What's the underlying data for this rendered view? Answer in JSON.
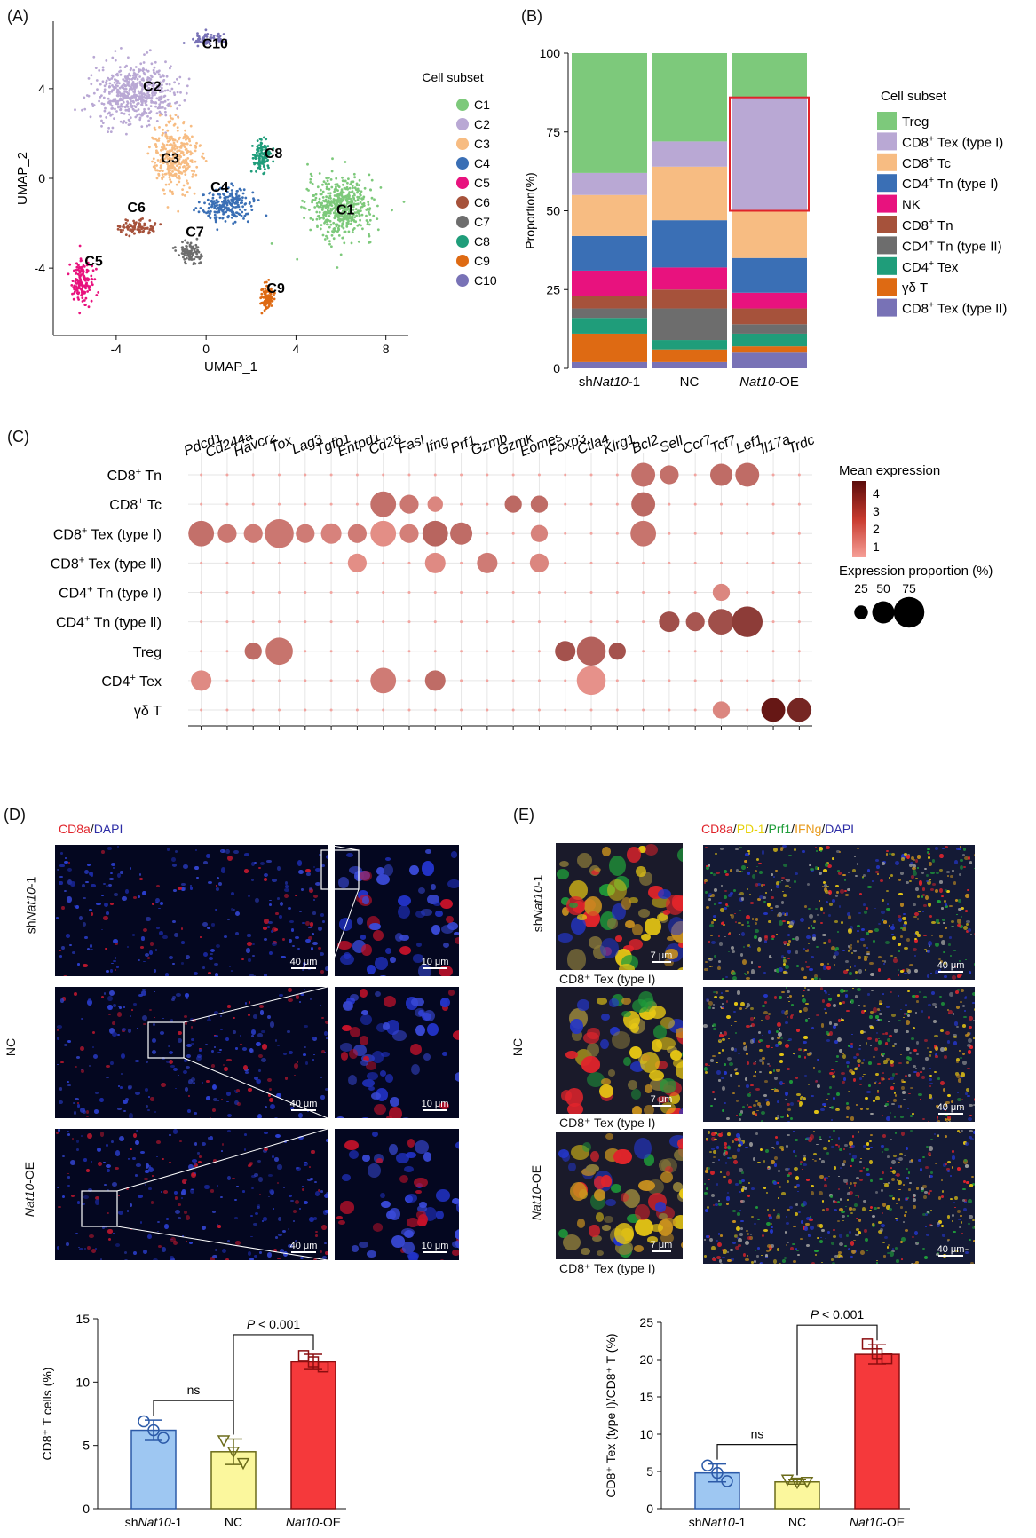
{
  "panels": {
    "A": "(A)",
    "B": "(B)",
    "C": "(C)",
    "D": "(D)",
    "E": "(E)"
  },
  "chart_data": [
    {
      "id": "A",
      "type": "scatter",
      "xlabel": "UMAP_1",
      "ylabel": "UMAP_2",
      "xlim": [
        -6.8,
        9
      ],
      "ylim": [
        -7,
        7
      ],
      "xticks": [
        "-4",
        "0",
        "4",
        "8"
      ],
      "yticks": [
        "-4",
        "0",
        "4"
      ],
      "legend_title": "Cell subset",
      "clusters": [
        {
          "name": "C1",
          "color": "#7dc97b",
          "center": [
            6.0,
            -1.3
          ],
          "label_pos": [
            6.2,
            -1.6
          ]
        },
        {
          "name": "C2",
          "color": "#b9a8d4",
          "center": [
            -3.2,
            3.8
          ],
          "label_pos": [
            -2.4,
            3.9
          ]
        },
        {
          "name": "C3",
          "color": "#f7bc82",
          "center": [
            -1.4,
            1.0
          ],
          "label_pos": [
            -1.6,
            0.7
          ]
        },
        {
          "name": "C4",
          "color": "#3a6fb5",
          "center": [
            1.0,
            -1.2
          ],
          "label_pos": [
            0.6,
            -0.6
          ]
        },
        {
          "name": "C5",
          "color": "#e8127e",
          "center": [
            -5.5,
            -4.6
          ],
          "label_pos": [
            -5.0,
            -3.9
          ]
        },
        {
          "name": "C6",
          "color": "#a6523b",
          "center": [
            -3.0,
            -2.2
          ],
          "label_pos": [
            -3.1,
            -1.5
          ]
        },
        {
          "name": "C7",
          "color": "#6d6d6d",
          "center": [
            -0.7,
            -3.3
          ],
          "label_pos": [
            -0.5,
            -2.6
          ]
        },
        {
          "name": "C8",
          "color": "#1f9d7a",
          "center": [
            2.5,
            1.0
          ],
          "label_pos": [
            3.0,
            0.9
          ]
        },
        {
          "name": "C9",
          "color": "#de6a13",
          "center": [
            2.7,
            -5.3
          ],
          "label_pos": [
            3.1,
            -5.1
          ]
        },
        {
          "name": "C10",
          "color": "#7872b6",
          "center": [
            0.0,
            6.2
          ],
          "label_pos": [
            0.4,
            5.8
          ]
        }
      ]
    },
    {
      "id": "B",
      "type": "bar",
      "stacked": true,
      "ylabel": "Proportion(%)",
      "ylim": [
        0,
        100
      ],
      "yticks": [
        "0",
        "25",
        "50",
        "75",
        "100"
      ],
      "categories": [
        {
          "pre": "sh",
          "italic": "Nat10",
          "post": "-1"
        },
        {
          "pre": "NC",
          "italic": "",
          "post": ""
        },
        {
          "pre": "",
          "italic": "Nat10",
          "post": "-OE"
        }
      ],
      "legend_title": "Cell subset",
      "series": [
        {
          "name": "Treg",
          "sup": "",
          "color": "#7dc97b",
          "values": [
            38,
            28,
            14
          ]
        },
        {
          "name": "CD8",
          "sup": "+",
          "tail": " Tex (type I)",
          "color": "#b9a8d4",
          "values": [
            7,
            8,
            36
          ]
        },
        {
          "name": "CD8",
          "sup": "+",
          "tail": " Tc",
          "color": "#f7bc82",
          "values": [
            13,
            17,
            15
          ]
        },
        {
          "name": "CD4",
          "sup": "+",
          "tail": " Tn (type I)",
          "color": "#3a6fb5",
          "values": [
            11,
            15,
            11
          ]
        },
        {
          "name": "NK",
          "sup": "",
          "color": "#e8127e",
          "values": [
            8,
            7,
            5
          ]
        },
        {
          "name": "CD8",
          "sup": "+",
          "tail": " Tn",
          "color": "#a6523b",
          "values": [
            4,
            6,
            5
          ]
        },
        {
          "name": "CD4",
          "sup": "+",
          "tail": " Tn (type II)",
          "color": "#6d6d6d",
          "values": [
            3,
            10,
            3
          ]
        },
        {
          "name": "CD4",
          "sup": "+",
          "tail": " Tex",
          "color": "#1f9d7a",
          "values": [
            5,
            3,
            4
          ]
        },
        {
          "name": "γδ T",
          "sup": "",
          "color": "#de6a13",
          "values": [
            9,
            4,
            2
          ]
        },
        {
          "name": "CD8",
          "sup": "+",
          "tail": " Tex (type II)",
          "color": "#7872b6",
          "values": [
            2,
            2,
            5
          ]
        }
      ],
      "highlight": {
        "category_index": 2,
        "from": 50,
        "to": 86,
        "color": "#e0242b"
      }
    },
    {
      "id": "C",
      "type": "scatter",
      "subtype": "dotplot",
      "genes": [
        "Pdcd1",
        "Cd244a",
        "Havcr2",
        "Tox",
        "Lag3",
        "Tgfb1",
        "Entpd1",
        "Cd28",
        "Fasl",
        "Ifng",
        "Prf1",
        "Gzmb",
        "Gzmk",
        "Eomes",
        "Foxp3",
        "Ctla4",
        "Klrg1",
        "Bcl2",
        "Sell",
        "Ccr7",
        "Tcf7",
        "Lef1",
        "Il17a",
        "Trdc"
      ],
      "rows": [
        {
          "base": "CD8",
          "sup": "+",
          "tail": " Tn"
        },
        {
          "base": "CD8",
          "sup": "+",
          "tail": " Tc"
        },
        {
          "base": "CD8",
          "sup": "+",
          "tail": " Tex (type Ⅰ)"
        },
        {
          "base": "CD8",
          "sup": "+",
          "tail": " Tex (type Ⅱ)"
        },
        {
          "base": "CD4",
          "sup": "+",
          "tail": " Tn (type Ⅰ)"
        },
        {
          "base": "CD4",
          "sup": "+",
          "tail": " Tn (type Ⅱ)"
        },
        {
          "base": "Treg",
          "sup": "",
          "tail": ""
        },
        {
          "base": "CD4",
          "sup": "+",
          "tail": " Tex"
        },
        {
          "base": "γδ T",
          "sup": "",
          "tail": ""
        }
      ],
      "points": [
        {
          "row": 0,
          "gene": "Bcl2",
          "expr": 1.8,
          "pct": 55
        },
        {
          "row": 0,
          "gene": "Sell",
          "expr": 1.8,
          "pct": 40
        },
        {
          "row": 0,
          "gene": "Tcf7",
          "expr": 1.9,
          "pct": 50
        },
        {
          "row": 0,
          "gene": "Lef1",
          "expr": 1.9,
          "pct": 55
        },
        {
          "row": 1,
          "gene": "Cd28",
          "expr": 1.8,
          "pct": 60
        },
        {
          "row": 1,
          "gene": "Fasl",
          "expr": 1.6,
          "pct": 40
        },
        {
          "row": 1,
          "gene": "Ifng",
          "expr": 1.2,
          "pct": 30
        },
        {
          "row": 1,
          "gene": "Gzmk",
          "expr": 2.0,
          "pct": 35
        },
        {
          "row": 1,
          "gene": "Eomes",
          "expr": 1.9,
          "pct": 35
        },
        {
          "row": 1,
          "gene": "Bcl2",
          "expr": 2.0,
          "pct": 55
        },
        {
          "row": 2,
          "gene": "Pdcd1",
          "expr": 1.8,
          "pct": 60
        },
        {
          "row": 2,
          "gene": "Cd244a",
          "expr": 1.6,
          "pct": 40
        },
        {
          "row": 2,
          "gene": "Havcr2",
          "expr": 1.5,
          "pct": 40
        },
        {
          "row": 2,
          "gene": "Tox",
          "expr": 1.6,
          "pct": 70
        },
        {
          "row": 2,
          "gene": "Lag3",
          "expr": 1.5,
          "pct": 40
        },
        {
          "row": 2,
          "gene": "Tgfb1",
          "expr": 1.3,
          "pct": 45
        },
        {
          "row": 2,
          "gene": "Entpd1",
          "expr": 1.5,
          "pct": 40
        },
        {
          "row": 2,
          "gene": "Cd28",
          "expr": 1.0,
          "pct": 60
        },
        {
          "row": 2,
          "gene": "Fasl",
          "expr": 1.4,
          "pct": 40
        },
        {
          "row": 2,
          "gene": "Ifng",
          "expr": 2.1,
          "pct": 60
        },
        {
          "row": 2,
          "gene": "Prf1",
          "expr": 1.9,
          "pct": 50
        },
        {
          "row": 2,
          "gene": "Eomes",
          "expr": 1.3,
          "pct": 35
        },
        {
          "row": 2,
          "gene": "Bcl2",
          "expr": 1.7,
          "pct": 60
        },
        {
          "row": 3,
          "gene": "Entpd1",
          "expr": 1.0,
          "pct": 40
        },
        {
          "row": 3,
          "gene": "Ifng",
          "expr": 1.1,
          "pct": 45
        },
        {
          "row": 3,
          "gene": "Gzmb",
          "expr": 1.5,
          "pct": 45
        },
        {
          "row": 3,
          "gene": "Eomes",
          "expr": 1.2,
          "pct": 40
        },
        {
          "row": 4,
          "gene": "Tcf7",
          "expr": 1.2,
          "pct": 35
        },
        {
          "row": 5,
          "gene": "Sell",
          "expr": 2.7,
          "pct": 45
        },
        {
          "row": 5,
          "gene": "Ccr7",
          "expr": 2.5,
          "pct": 40
        },
        {
          "row": 5,
          "gene": "Tcf7",
          "expr": 2.7,
          "pct": 60
        },
        {
          "row": 5,
          "gene": "Lef1",
          "expr": 3.2,
          "pct": 75
        },
        {
          "row": 6,
          "gene": "Havcr2",
          "expr": 1.9,
          "pct": 35
        },
        {
          "row": 6,
          "gene": "Tox",
          "expr": 1.7,
          "pct": 65
        },
        {
          "row": 6,
          "gene": "Foxp3",
          "expr": 2.6,
          "pct": 45
        },
        {
          "row": 6,
          "gene": "Ctla4",
          "expr": 2.2,
          "pct": 70
        },
        {
          "row": 6,
          "gene": "Klrg1",
          "expr": 2.6,
          "pct": 35
        },
        {
          "row": 7,
          "gene": "Pdcd1",
          "expr": 1.1,
          "pct": 45
        },
        {
          "row": 7,
          "gene": "Cd28",
          "expr": 1.5,
          "pct": 60
        },
        {
          "row": 7,
          "gene": "Ifng",
          "expr": 1.9,
          "pct": 45
        },
        {
          "row": 7,
          "gene": "Ctla4",
          "expr": 0.9,
          "pct": 70
        },
        {
          "row": 8,
          "gene": "Tcf7",
          "expr": 1.2,
          "pct": 35
        },
        {
          "row": 8,
          "gene": "Il17a",
          "expr": 4.2,
          "pct": 55
        },
        {
          "row": 8,
          "gene": "Trdc",
          "expr": 3.8,
          "pct": 55
        }
      ],
      "color_legend_title": "Mean expression",
      "color_ticks": [
        "1",
        "2",
        "3",
        "4"
      ],
      "size_legend_title": "Expression proportion (%)",
      "size_ticks": [
        "25",
        "50",
        "75"
      ]
    },
    {
      "id": "D-bar",
      "type": "bar",
      "ylabel": "CD8⁺ T cells (%)",
      "ylim": [
        0,
        15
      ],
      "yticks": [
        "0",
        "5",
        "10",
        "15"
      ],
      "categories": [
        "shNat10-1",
        "NC",
        "Nat10-OE"
      ],
      "values": [
        6.2,
        4.5,
        11.6
      ],
      "errors": [
        0.8,
        1.0,
        0.6
      ],
      "points": [
        [
          6.9,
          6.2,
          5.6
        ],
        [
          5.4,
          4.5,
          3.6
        ],
        [
          12.1,
          11.6,
          11.2
        ]
      ],
      "colors": [
        "#9ec7f2",
        "#fbf79d",
        "#f5393b"
      ],
      "stroke_colors": [
        "#2c5aa8",
        "#6b6b1a",
        "#8b0e10"
      ],
      "annotations": [
        {
          "text": "ns",
          "from": 0,
          "to": 1
        },
        {
          "text_pre": "P",
          "text_post": " < 0.001",
          "from": 1,
          "to": 2
        }
      ]
    },
    {
      "id": "E-bar",
      "type": "bar",
      "ylabel": "CD8⁺ Tex (type I)/CD8⁺ T (%)",
      "ylim": [
        0,
        25
      ],
      "yticks": [
        "0",
        "5",
        "10",
        "15",
        "20",
        "25"
      ],
      "categories": [
        "shNat10-1",
        "NC",
        "Nat10-OE"
      ],
      "values": [
        4.8,
        3.6,
        20.7
      ],
      "errors": [
        1.2,
        0.3,
        1.3
      ],
      "points": [
        [
          5.8,
          4.8,
          3.7
        ],
        [
          3.9,
          3.5,
          3.6
        ],
        [
          22.1,
          20.8,
          20.1
        ]
      ],
      "colors": [
        "#9ec7f2",
        "#fbf79d",
        "#f5393b"
      ],
      "stroke_colors": [
        "#2c5aa8",
        "#6b6b1a",
        "#8b0e10"
      ],
      "annotations": [
        {
          "text": "ns",
          "from": 0,
          "to": 1
        },
        {
          "text_pre": "P",
          "text_post": " < 0.001",
          "from": 1,
          "to": 2
        }
      ]
    }
  ],
  "panel_d": {
    "stain": {
      "cd8a": "CD8a",
      "sep": "/",
      "dapi": "DAPI",
      "cd8a_color": "#e0242b",
      "dapi_color": "#2d2da6"
    },
    "rows": [
      {
        "pre": "sh",
        "italic": "Nat10",
        "post": "-1"
      },
      {
        "pre": "NC",
        "italic": "",
        "post": ""
      },
      {
        "pre": "",
        "italic": "Nat10",
        "post": "-OE"
      }
    ],
    "scale_large": "40 μm",
    "scale_small": "10 μm"
  },
  "panel_e": {
    "stain": [
      {
        "text": "CD8a",
        "color": "#e0242b"
      },
      {
        "text": "/",
        "color": "#111111"
      },
      {
        "text": "PD-1",
        "color": "#e6d20a"
      },
      {
        "text": "/",
        "color": "#111111"
      },
      {
        "text": "Prf1",
        "color": "#1f9d3a"
      },
      {
        "text": "/",
        "color": "#111111"
      },
      {
        "text": "IFNg",
        "color": "#e89a1a"
      },
      {
        "text": "/",
        "color": "#111111"
      },
      {
        "text": "DAPI",
        "color": "#2d2da6"
      }
    ],
    "rows": [
      {
        "pre": "sh",
        "italic": "Nat10",
        "post": "-1"
      },
      {
        "pre": "NC",
        "italic": "",
        "post": ""
      },
      {
        "pre": "",
        "italic": "Nat10",
        "post": "-OE"
      }
    ],
    "inset_caption": "CD8⁺ Tex (type I)",
    "scale_large": "40 μm",
    "scale_small": "7 μm"
  }
}
